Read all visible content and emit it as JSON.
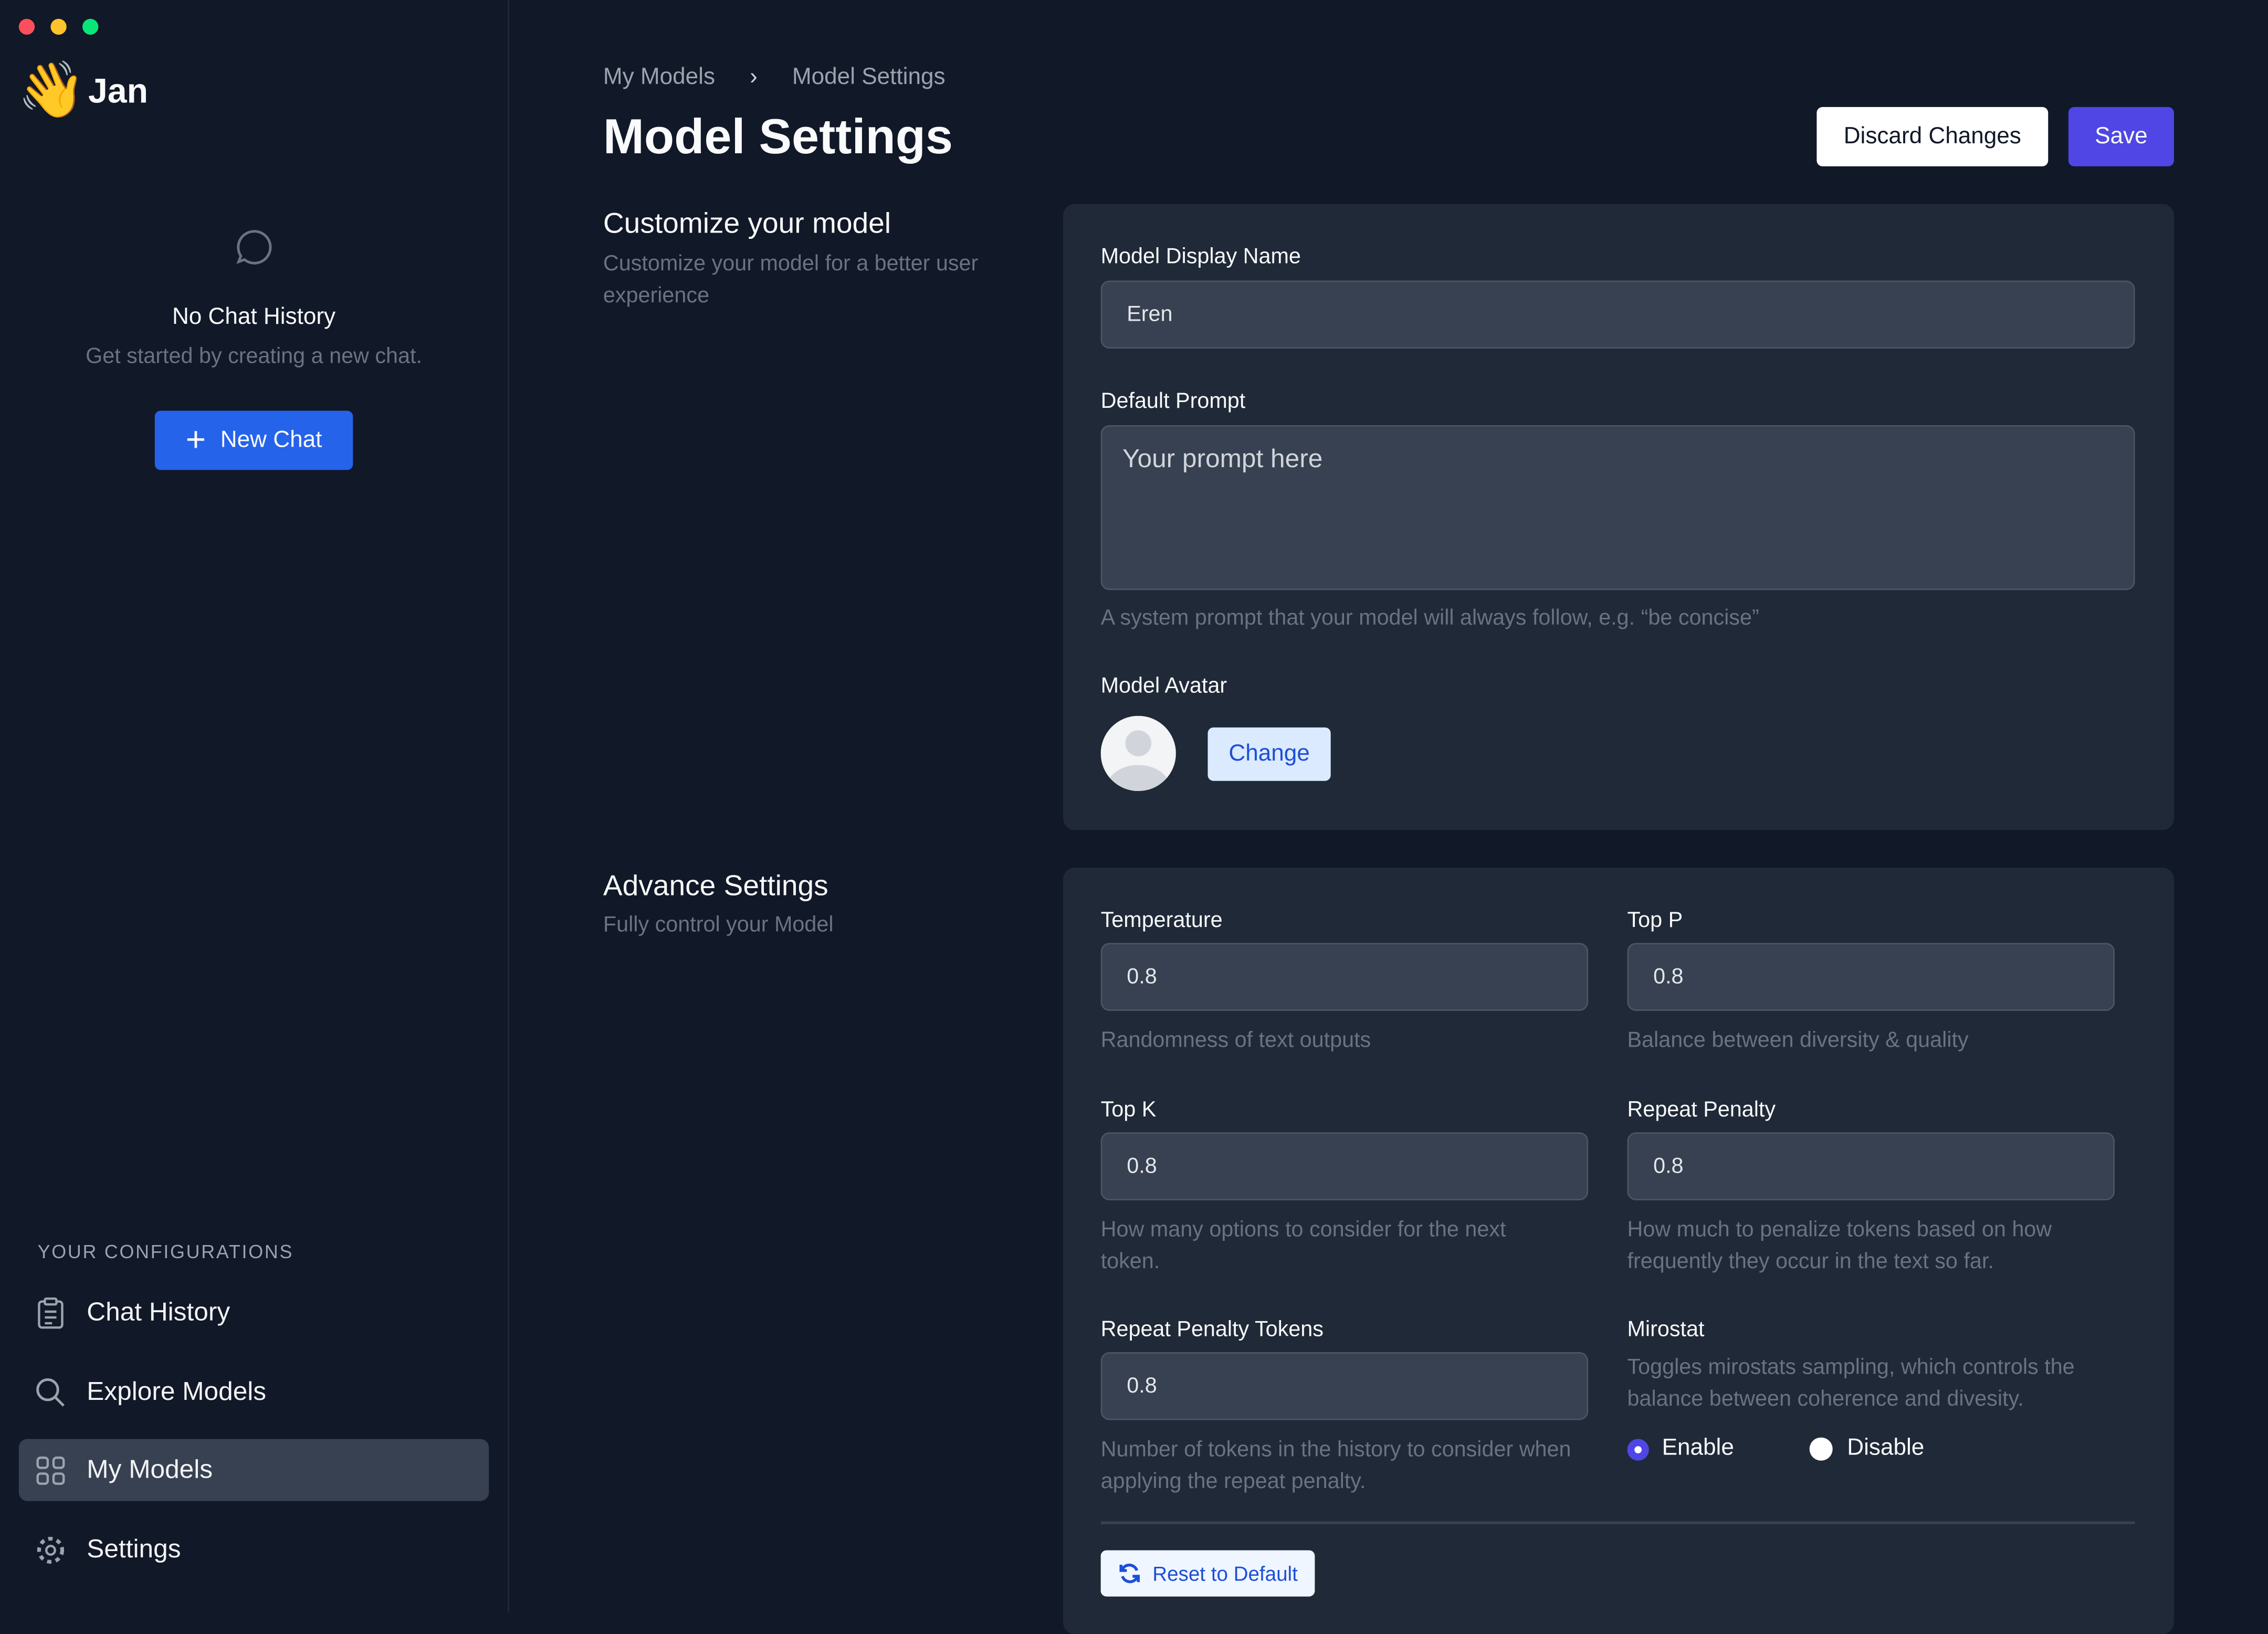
{
  "app": {
    "name": "Jan",
    "logo": "waving-hand-emoji"
  },
  "sidebar": {
    "empty_title": "No Chat History",
    "empty_subtitle": "Get started by creating a new chat.",
    "new_chat": "New Chat",
    "section_label": "YOUR CONFIGURATIONS",
    "items": [
      {
        "label": "Chat History",
        "icon": "clipboard-icon"
      },
      {
        "label": "Explore Models",
        "icon": "search-icon"
      },
      {
        "label": "My Models",
        "icon": "grid-icon",
        "active": true
      },
      {
        "label": "Settings",
        "icon": "gear-icon"
      }
    ]
  },
  "breadcrumb": [
    "My Models",
    "Model Settings"
  ],
  "header": {
    "title": "Model Settings",
    "discard": "Discard Changes",
    "save": "Save"
  },
  "customize": {
    "title": "Customize your model",
    "subtitle": "Customize your model for a better user experience",
    "display_name_label": "Model Display Name",
    "display_name_value": "Eren",
    "prompt_label": "Default Prompt",
    "prompt_placeholder": "Your prompt here",
    "prompt_help": "A system prompt that your model will always follow, e.g. “be concise”",
    "avatar_label": "Model Avatar",
    "change": "Change"
  },
  "advanced": {
    "title": "Advance Settings",
    "subtitle": "Fully control your Model",
    "temperature": {
      "label": "Temperature",
      "value": "0.8",
      "help": "Randomness of text outputs"
    },
    "top_p": {
      "label": "Top P",
      "value": "0.8",
      "help": "Balance between diversity & quality"
    },
    "top_k": {
      "label": "Top K",
      "value": "0.8",
      "help": "How many options to consider for the next token."
    },
    "repeat_penalty": {
      "label": "Repeat Penalty",
      "value": "0.8",
      "help": "How much to penalize tokens based on how frequently they occur in the text so far."
    },
    "repeat_penalty_tokens": {
      "label": "Repeat Penalty Tokens",
      "value": "0.8",
      "help": "Number of tokens in the history to consider when applying the repeat penalty."
    },
    "mirostat": {
      "label": "Mirostat",
      "help": "Toggles mirostats sampling, which controls the balance between coherence and divesity.",
      "enable": "Enable",
      "disable": "Disable",
      "selected": "Enable"
    },
    "reset": "Reset to Default"
  },
  "colors": {
    "accent": "#4f46e5",
    "primary": "#2563eb",
    "background": "#111827",
    "card": "#1f2937"
  }
}
